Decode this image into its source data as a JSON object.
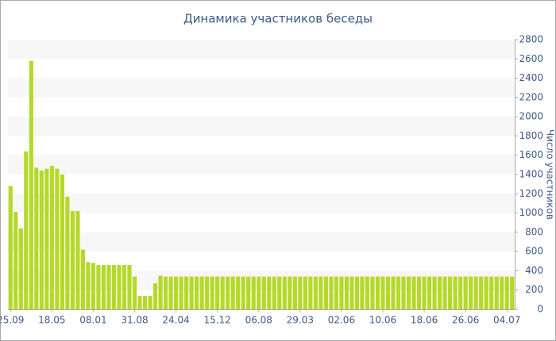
{
  "chart_data": {
    "type": "bar",
    "title": "Динамика участников беседы",
    "y_label": "Число участников",
    "categories": [
      "25.09",
      null,
      null,
      null,
      null,
      null,
      null,
      null,
      "18.05",
      null,
      null,
      null,
      null,
      null,
      null,
      null,
      "08.01",
      null,
      null,
      null,
      null,
      null,
      null,
      null,
      "31.08",
      null,
      null,
      null,
      null,
      null,
      null,
      null,
      "24.04",
      null,
      null,
      null,
      null,
      null,
      null,
      null,
      "15.12",
      null,
      null,
      null,
      null,
      null,
      null,
      null,
      "06.08",
      null,
      null,
      null,
      null,
      null,
      null,
      null,
      "29.03",
      null,
      null,
      null,
      null,
      null,
      null,
      null,
      "02.06",
      null,
      null,
      null,
      null,
      null,
      null,
      null,
      "10.06",
      null,
      null,
      null,
      null,
      null,
      null,
      null,
      "18.06",
      null,
      null,
      null,
      null,
      null,
      null,
      null,
      "26.06",
      null,
      null,
      null,
      null,
      null,
      null,
      null,
      "04.07",
      null
    ],
    "values": [
      1280,
      1010,
      840,
      1640,
      2580,
      1470,
      1440,
      1460,
      1490,
      1460,
      1400,
      1170,
      1020,
      1020,
      620,
      490,
      480,
      460,
      460,
      460,
      460,
      460,
      460,
      460,
      340,
      140,
      140,
      140,
      270,
      350,
      340,
      340,
      340,
      340,
      340,
      340,
      340,
      340,
      340,
      340,
      340,
      340,
      340,
      340,
      340,
      340,
      340,
      340,
      340,
      340,
      340,
      340,
      340,
      340,
      340,
      340,
      340,
      340,
      340,
      340,
      340,
      340,
      340,
      340,
      340,
      340,
      340,
      340,
      340,
      340,
      340,
      340,
      340,
      340,
      340,
      340,
      340,
      340,
      340,
      340,
      340,
      340,
      340,
      340,
      340,
      340,
      340,
      340,
      340,
      340,
      340,
      340,
      340,
      340,
      340,
      340,
      340,
      340
    ],
    "color": "#b5d92a",
    "ylim": [
      0,
      2800
    ],
    "yticks": [
      0,
      200,
      400,
      600,
      800,
      1000,
      1200,
      1400,
      1600,
      1800,
      2000,
      2200,
      2400,
      2600,
      2800
    ],
    "grid": true
  }
}
